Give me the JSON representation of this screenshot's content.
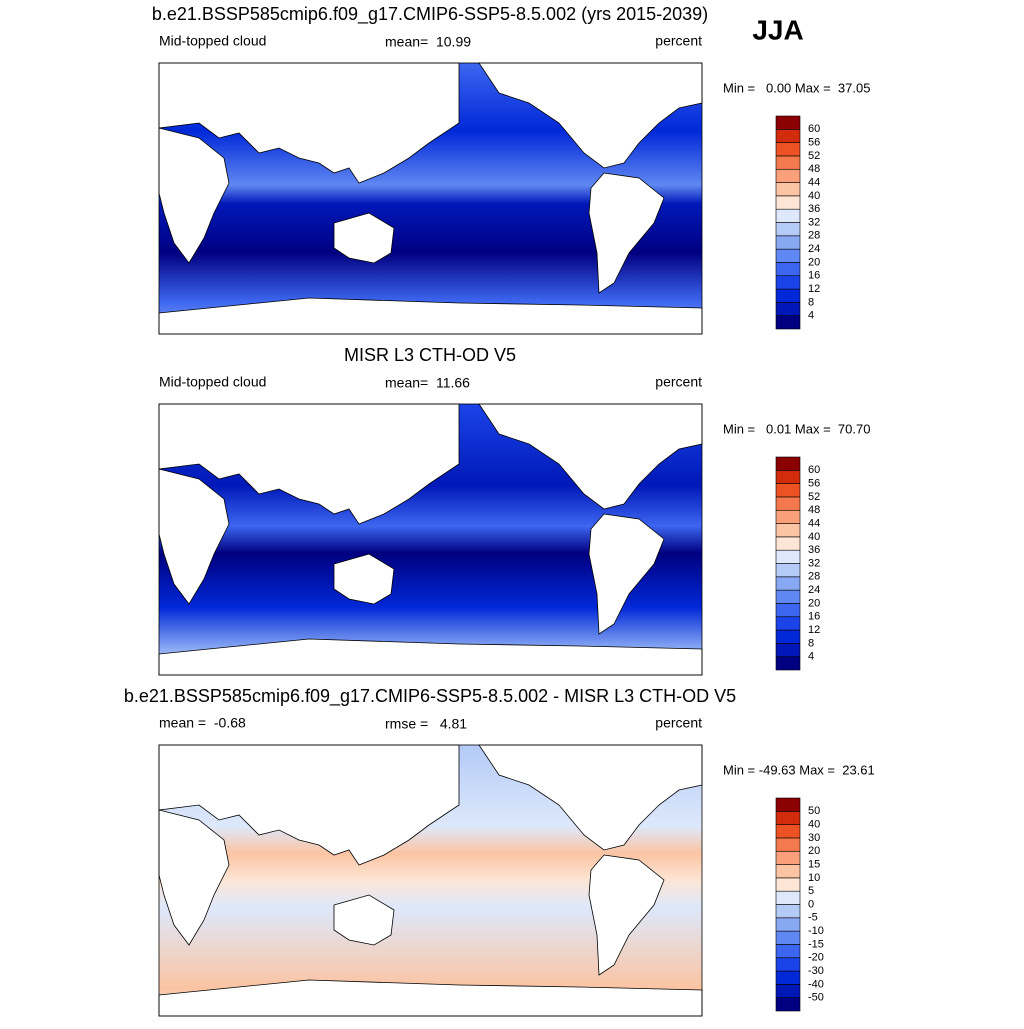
{
  "label": "JJA",
  "panels": [
    {
      "title": "b.e21.BSSP585cmip6.f09_g17.CMIP6-SSP5-8.5.002 (yrs 2015-2039)",
      "left": "Mid-topped cloud",
      "center": "mean=  10.99",
      "right": "percent",
      "range": "Min =   0.00 Max =  37.05",
      "colorbar": {
        "labels": [
          4,
          8,
          12,
          16,
          20,
          24,
          28,
          32,
          36,
          40,
          44,
          48,
          52,
          56,
          60
        ],
        "colors": [
          "#000080",
          "#0018b8",
          "#0028d8",
          "#1a44e8",
          "#3d66f0",
          "#6088f2",
          "#88a8f4",
          "#b4cbf8",
          "#dde8fb",
          "#fde6d6",
          "#fbc4a2",
          "#f9a07a",
          "#f47a4e",
          "#ec5224",
          "#d22c0c",
          "#8b0000"
        ]
      }
    },
    {
      "title": "MISR L3 CTH-OD V5",
      "left": "Mid-topped cloud",
      "center": "mean=  11.66",
      "right": "percent",
      "range": "Min =   0.01 Max =  70.70",
      "colorbar": {
        "labels": [
          4,
          8,
          12,
          16,
          20,
          24,
          28,
          32,
          36,
          40,
          44,
          48,
          52,
          56,
          60
        ],
        "colors": [
          "#000080",
          "#0018b8",
          "#0028d8",
          "#1a44e8",
          "#3d66f0",
          "#6088f2",
          "#88a8f4",
          "#b4cbf8",
          "#dde8fb",
          "#fde6d6",
          "#fbc4a2",
          "#f9a07a",
          "#f47a4e",
          "#ec5224",
          "#d22c0c",
          "#8b0000"
        ]
      }
    },
    {
      "title": "b.e21.BSSP585cmip6.f09_g17.CMIP6-SSP5-8.5.002 - MISR L3 CTH-OD V5",
      "left": "mean =  -0.68",
      "center": "rmse =   4.81",
      "right": "percent",
      "range": "Min = -49.63 Max =  23.61",
      "colorbar": {
        "labels": [
          -50,
          -40,
          -30,
          -20,
          -15,
          -10,
          -5,
          0,
          5,
          10,
          15,
          20,
          30,
          40,
          50
        ],
        "colors": [
          "#000080",
          "#0018b8",
          "#0028d8",
          "#1a44e8",
          "#3d66f0",
          "#6088f2",
          "#88a8f4",
          "#b4cbf8",
          "#dde8fb",
          "#fde6d6",
          "#fbc4a2",
          "#f9a07a",
          "#f47a4e",
          "#ec5224",
          "#d22c0c",
          "#8b0000"
        ]
      }
    }
  ]
}
